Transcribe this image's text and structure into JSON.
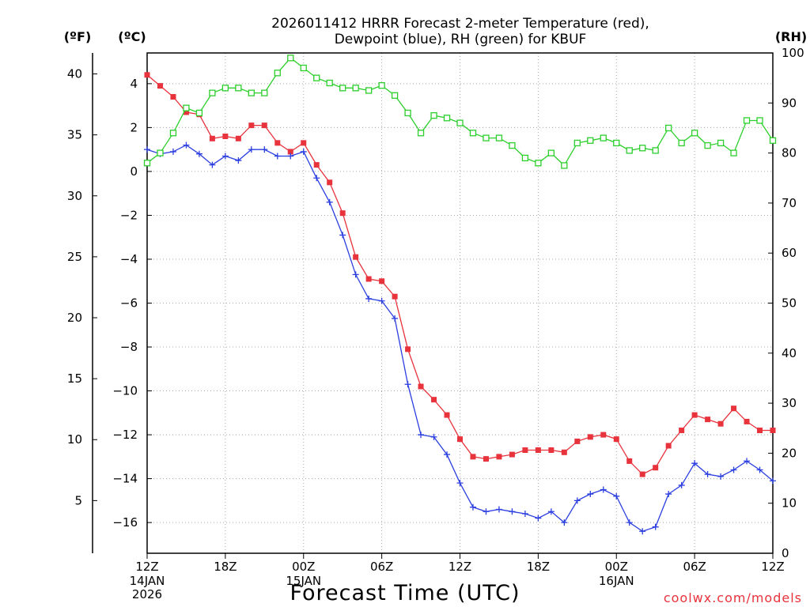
{
  "chart_data": {
    "type": "line",
    "title_lines": [
      "2026011412 HRRR Forecast 2-meter Temperature (red),",
      "Dewpoint (blue), RH (green) for KBUF"
    ],
    "xlabel": "Forecast Time (UTC)",
    "credit": "coolwx.com/models",
    "units": {
      "fahrenheit": "(ºF)",
      "celsius": "(ºC)",
      "rh": "(RH)"
    },
    "x": {
      "unit": "forecast hour",
      "range": [
        0,
        48
      ]
    },
    "x_ticks": [
      {
        "hour": 0,
        "label": "12Z",
        "sub": [
          "14JAN",
          "2026"
        ]
      },
      {
        "hour": 6,
        "label": "18Z",
        "sub": []
      },
      {
        "hour": 12,
        "label": "00Z",
        "sub": [
          "15JAN"
        ]
      },
      {
        "hour": 18,
        "label": "06Z",
        "sub": []
      },
      {
        "hour": 24,
        "label": "12Z",
        "sub": []
      },
      {
        "hour": 30,
        "label": "18Z",
        "sub": []
      },
      {
        "hour": 36,
        "label": "00Z",
        "sub": [
          "16JAN"
        ]
      },
      {
        "hour": 42,
        "label": "06Z",
        "sub": []
      },
      {
        "hour": 48,
        "label": "12Z",
        "sub": []
      }
    ],
    "y_celsius": {
      "range": [
        -17.4,
        5.4
      ],
      "ticks": [
        4,
        2,
        0,
        -2,
        -4,
        -6,
        -8,
        -10,
        -12,
        -14,
        -16
      ]
    },
    "y_fahrenheit": {
      "ticks": [
        40,
        35,
        30,
        25,
        20,
        15,
        10,
        5
      ]
    },
    "y_rh": {
      "range": [
        0,
        100
      ],
      "ticks": [
        100,
        90,
        80,
        70,
        60,
        50,
        40,
        30,
        20,
        10,
        0
      ]
    },
    "grid": true,
    "series": [
      {
        "name": "Temperature",
        "axis": "celsius",
        "color": "#e8323c",
        "marker": "filled-square",
        "x": [
          0,
          1,
          2,
          3,
          4,
          5,
          6,
          7,
          8,
          9,
          10,
          11,
          12,
          13,
          14,
          15,
          16,
          17,
          18,
          19,
          20,
          21,
          22,
          23,
          24,
          25,
          26,
          27,
          28,
          29,
          30,
          31,
          32,
          33,
          34,
          35,
          36,
          37,
          38,
          39,
          40,
          41,
          42,
          43,
          44,
          45,
          46,
          47,
          48
        ],
        "values": [
          4.4,
          3.9,
          3.4,
          2.7,
          2.6,
          1.5,
          1.6,
          1.5,
          2.1,
          2.1,
          1.3,
          0.9,
          1.3,
          0.3,
          -0.5,
          -1.9,
          -3.9,
          -4.9,
          -5.0,
          -5.7,
          -8.1,
          -9.8,
          -10.4,
          -11.1,
          -12.2,
          -13.0,
          -13.1,
          -13.0,
          -12.9,
          -12.7,
          -12.7,
          -12.7,
          -12.8,
          -12.3,
          -12.1,
          -12.0,
          -12.2,
          -13.2,
          -13.8,
          -13.5,
          -12.5,
          -11.8,
          -11.1,
          -11.3,
          -11.5,
          -10.8,
          -11.4,
          -11.8,
          -11.8
        ]
      },
      {
        "name": "Dewpoint",
        "axis": "celsius",
        "color": "#2b3fe0",
        "marker": "plus",
        "x": [
          0,
          1,
          2,
          3,
          4,
          5,
          6,
          7,
          8,
          9,
          10,
          11,
          12,
          13,
          14,
          15,
          16,
          17,
          18,
          19,
          20,
          21,
          22,
          23,
          24,
          25,
          26,
          27,
          28,
          29,
          30,
          31,
          32,
          33,
          34,
          35,
          36,
          37,
          38,
          39,
          40,
          41,
          42,
          43,
          44,
          45,
          46,
          47,
          48
        ],
        "values": [
          1.0,
          0.8,
          0.9,
          1.2,
          0.8,
          0.3,
          0.7,
          0.5,
          1.0,
          1.0,
          0.7,
          0.7,
          0.9,
          -0.3,
          -1.4,
          -2.9,
          -4.7,
          -5.8,
          -5.9,
          -6.7,
          -9.7,
          -12.0,
          -12.1,
          -12.9,
          -14.2,
          -15.3,
          -15.5,
          -15.4,
          -15.5,
          -15.6,
          -15.8,
          -15.5,
          -16.0,
          -15.0,
          -14.7,
          -14.5,
          -14.8,
          -16.0,
          -16.4,
          -16.2,
          -14.7,
          -14.3,
          -13.3,
          -13.8,
          -13.9,
          -13.6,
          -13.2,
          -13.6,
          -14.1
        ]
      },
      {
        "name": "RH",
        "axis": "rh",
        "color": "#2ccf2c",
        "marker": "open-square",
        "x": [
          0,
          1,
          2,
          3,
          4,
          5,
          6,
          7,
          8,
          9,
          10,
          11,
          12,
          13,
          14,
          15,
          16,
          17,
          18,
          19,
          20,
          21,
          22,
          23,
          24,
          25,
          26,
          27,
          28,
          29,
          30,
          31,
          32,
          33,
          34,
          35,
          36,
          37,
          38,
          39,
          40,
          41,
          42,
          43,
          44,
          45,
          46,
          47,
          48
        ],
        "values": [
          78,
          80,
          84,
          89,
          88,
          92,
          93,
          93,
          92,
          92,
          96,
          99,
          97,
          95,
          94,
          93,
          93,
          92.5,
          93.5,
          91.5,
          88,
          84,
          87.5,
          87,
          86,
          84,
          83,
          83,
          81.5,
          79,
          78,
          80,
          77.5,
          82,
          82.5,
          83,
          82,
          80.5,
          81,
          80.5,
          85,
          82,
          84,
          81.5,
          82,
          80,
          86.5,
          86.5,
          82.5
        ]
      }
    ]
  }
}
